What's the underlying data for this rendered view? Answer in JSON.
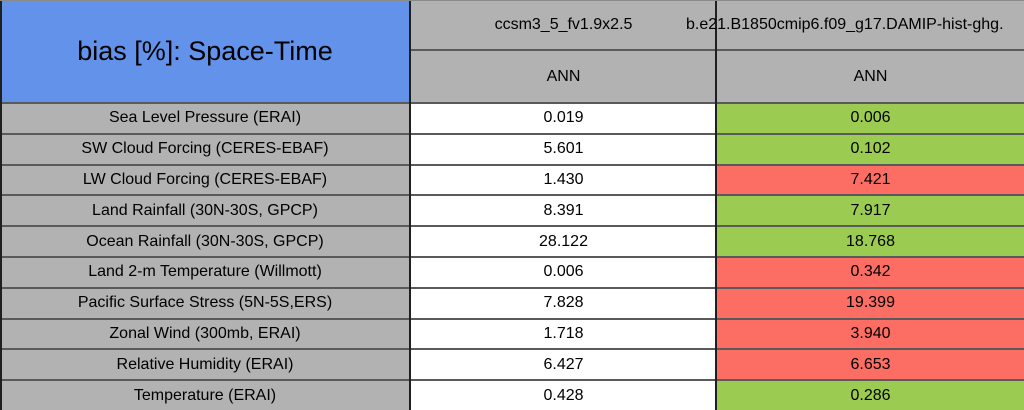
{
  "chart_data": {
    "type": "table",
    "title": "bias [%]: Space-Time",
    "metric": "bias",
    "unit": "%",
    "columns": [
      {
        "model": "ccsm3_5_fv1.9x2.5",
        "season": "ANN"
      },
      {
        "model": "b.e21.B1850cmip6.f09_g17.DAMIP-hist-ghg.",
        "season": "ANN"
      }
    ],
    "rows": [
      {
        "label": "Sea Level Pressure (ERAI)",
        "values": [
          "0.019",
          "0.006"
        ],
        "status": "better"
      },
      {
        "label": "SW Cloud Forcing (CERES-EBAF)",
        "values": [
          "5.601",
          "0.102"
        ],
        "status": "better"
      },
      {
        "label": "LW Cloud Forcing (CERES-EBAF)",
        "values": [
          "1.430",
          "7.421"
        ],
        "status": "worse"
      },
      {
        "label": "Land Rainfall (30N-30S, GPCP)",
        "values": [
          "8.391",
          "7.917"
        ],
        "status": "better"
      },
      {
        "label": "Ocean Rainfall (30N-30S, GPCP)",
        "values": [
          "28.122",
          "18.768"
        ],
        "status": "better"
      },
      {
        "label": "Land 2-m Temperature (Willmott)",
        "values": [
          "0.006",
          "0.342"
        ],
        "status": "worse"
      },
      {
        "label": "Pacific Surface Stress (5N-5S,ERS)",
        "values": [
          "7.828",
          "19.399"
        ],
        "status": "worse"
      },
      {
        "label": "Zonal Wind (300mb, ERAI)",
        "values": [
          "1.718",
          "3.940"
        ],
        "status": "worse"
      },
      {
        "label": "Relative Humidity (ERAI)",
        "values": [
          "6.427",
          "6.653"
        ],
        "status": "worse"
      },
      {
        "label": "Temperature (ERAI)",
        "values": [
          "0.428",
          "0.286"
        ],
        "status": "better"
      }
    ],
    "colors": {
      "header_blue": "#6292e9",
      "cell_gray": "#b2b2b2",
      "neutral_white": "#ffffff",
      "better_green": "#9bcc51",
      "worse_red": "#fc6d64",
      "horizontal_line": "#5a5a5a",
      "vertical_line": "#1f1f1f"
    }
  }
}
